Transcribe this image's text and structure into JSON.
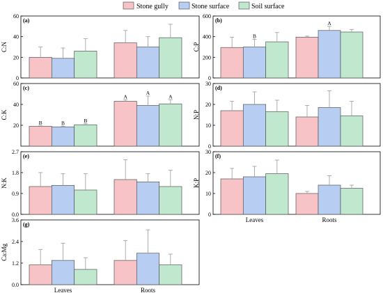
{
  "legend": [
    {
      "name": "Stone gully",
      "color": "#f7c3c6"
    },
    {
      "name": "Stone surface",
      "color": "#b7cdf2"
    },
    {
      "name": "Soil surface",
      "color": "#bfe8cf"
    }
  ],
  "stroke_color": "#555555",
  "errorbar_color": "#999999",
  "chart_data": [
    {
      "type": "bar",
      "panel": "(a)",
      "ylabel": "C:N",
      "categories": [
        "Leaves",
        "Roots"
      ],
      "ylim": [
        0,
        60
      ],
      "yticks": [
        "0",
        "20",
        "40",
        "60"
      ],
      "series": [
        {
          "name": "Stone gully",
          "values": [
            20,
            34
          ],
          "errors": [
            10,
            12
          ],
          "labels": [
            "",
            ""
          ]
        },
        {
          "name": "Stone surface",
          "values": [
            19,
            30
          ],
          "errors": [
            10,
            10
          ],
          "labels": [
            "",
            ""
          ]
        },
        {
          "name": "Soil surface",
          "values": [
            26,
            39
          ],
          "errors": [
            12,
            13
          ],
          "labels": [
            "",
            ""
          ]
        }
      ]
    },
    {
      "type": "bar",
      "panel": "(b)",
      "ylabel": "C:P",
      "categories": [
        "Leaves",
        "Roots"
      ],
      "ylim": [
        0,
        600
      ],
      "yticks": [
        "0",
        "200",
        "400",
        "600"
      ],
      "series": [
        {
          "name": "Stone gully",
          "values": [
            295,
            395
          ],
          "errors": [
            100,
            10
          ],
          "labels": [
            "",
            ""
          ]
        },
        {
          "name": "Stone surface",
          "values": [
            300,
            460
          ],
          "errors": [
            75,
            40
          ],
          "labels": [
            "B",
            "A"
          ]
        },
        {
          "name": "Soil surface",
          "values": [
            350,
            445
          ],
          "errors": [
            90,
            25
          ],
          "labels": [
            "",
            ""
          ]
        }
      ]
    },
    {
      "type": "bar",
      "panel": "(c)",
      "ylabel": "C:K",
      "categories": [
        "Leaves",
        "Roots"
      ],
      "ylim": [
        0,
        60
      ],
      "yticks": [
        "20",
        "40",
        "60"
      ],
      "series": [
        {
          "name": "Stone gully",
          "values": [
            19,
            43
          ],
          "errors": [
            0.5,
            1.5
          ],
          "labels": [
            "B",
            "A"
          ]
        },
        {
          "name": "Stone surface",
          "values": [
            18.5,
            39
          ],
          "errors": [
            0.5,
            9
          ],
          "labels": [
            "B",
            "A"
          ]
        },
        {
          "name": "Soil surface",
          "values": [
            20.5,
            40.5
          ],
          "errors": [
            1,
            4
          ],
          "labels": [
            "B",
            "A"
          ]
        }
      ]
    },
    {
      "type": "bar",
      "panel": "(d)",
      "ylabel": "N:P",
      "categories": [
        "Leaves",
        "Roots"
      ],
      "ylim": [
        0,
        30
      ],
      "yticks": [
        "0",
        "10",
        "20",
        "30"
      ],
      "series": [
        {
          "name": "Stone gully",
          "values": [
            17,
            14
          ],
          "errors": [
            4.5,
            5.5
          ],
          "labels": [
            "",
            ""
          ]
        },
        {
          "name": "Stone surface",
          "values": [
            20,
            18.5
          ],
          "errors": [
            6,
            8
          ],
          "labels": [
            "",
            ""
          ]
        },
        {
          "name": "Soil surface",
          "values": [
            16.5,
            14.5
          ],
          "errors": [
            5.5,
            7
          ],
          "labels": [
            "",
            ""
          ]
        }
      ]
    },
    {
      "type": "bar",
      "panel": "(e)",
      "ylabel": "N:K",
      "categories": [
        "Leaves",
        "Roots"
      ],
      "ylim": [
        0,
        2.7
      ],
      "yticks": [
        "0.0",
        "0.9",
        "1.8",
        "2.7"
      ],
      "series": [
        {
          "name": "Stone gully",
          "values": [
            1.2,
            1.5
          ],
          "errors": [
            0.6,
            0.85
          ],
          "labels": [
            "",
            ""
          ]
        },
        {
          "name": "Stone surface",
          "values": [
            1.25,
            1.4
          ],
          "errors": [
            0.5,
            0.35
          ],
          "labels": [
            "",
            ""
          ]
        },
        {
          "name": "Soil surface",
          "values": [
            1.05,
            1.2
          ],
          "errors": [
            0.7,
            0.7
          ],
          "labels": [
            "",
            ""
          ]
        }
      ]
    },
    {
      "type": "bar",
      "panel": "(f)",
      "ylabel": "K:P",
      "categories": [
        "Leaves",
        "Roots"
      ],
      "ylim": [
        0,
        30
      ],
      "yticks": [
        "0",
        "10",
        "20",
        "30"
      ],
      "series": [
        {
          "name": "Stone gully",
          "values": [
            17,
            10
          ],
          "errors": [
            5,
            1
          ]
        },
        {
          "name": "Stone surface",
          "values": [
            18,
            14
          ],
          "errors": [
            5,
            4.5
          ]
        },
        {
          "name": "Soil surface",
          "values": [
            19.5,
            12.5
          ],
          "errors": [
            6.5,
            1.5
          ]
        }
      ],
      "xlabels": true
    },
    {
      "type": "bar",
      "panel": "(g)",
      "ylabel": "Ca:Mg",
      "categories": [
        "Leaves",
        "Roots"
      ],
      "ylim": [
        0,
        3.6
      ],
      "yticks": [
        "0.0",
        "1.2",
        "2.4",
        "3.6"
      ],
      "series": [
        {
          "name": "Stone gully",
          "values": [
            1.1,
            1.35
          ],
          "errors": [
            0.85,
            1.1
          ]
        },
        {
          "name": "Stone surface",
          "values": [
            1.35,
            1.75
          ],
          "errors": [
            0.95,
            1.3
          ]
        },
        {
          "name": "Soil surface",
          "values": [
            0.85,
            1.1
          ],
          "errors": [
            0.65,
            0.6
          ]
        }
      ],
      "xlabels": true
    }
  ]
}
